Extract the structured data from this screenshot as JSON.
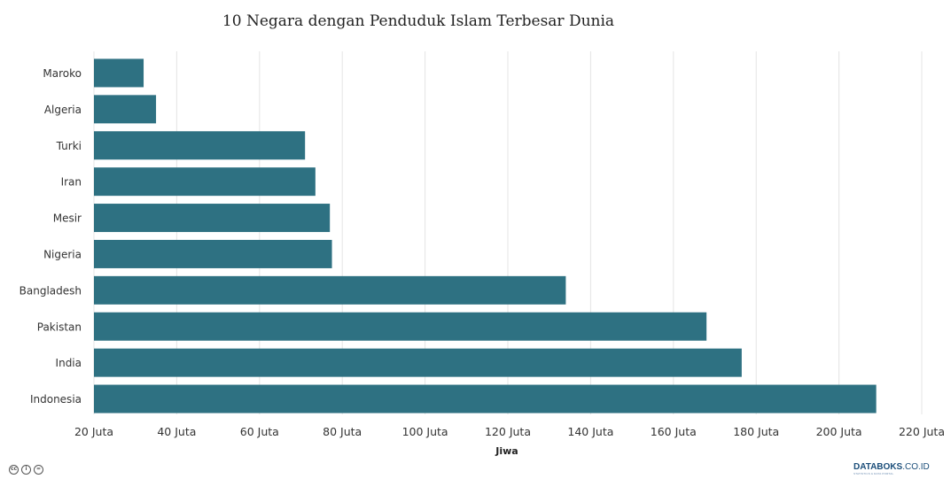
{
  "chart_data": {
    "type": "bar",
    "orientation": "horizontal",
    "title": "10 Negara dengan Penduduk Islam Terbesar Dunia",
    "xlabel": "Jiwa",
    "ylabel": "",
    "categories": [
      "Maroko",
      "Algeria",
      "Turki",
      "Iran",
      "Mesir",
      "Nigeria",
      "Bangladesh",
      "Pakistan",
      "India",
      "Indonesia"
    ],
    "values": [
      32,
      35,
      71,
      73.5,
      77,
      77.5,
      134,
      168,
      176.5,
      209
    ],
    "xlim": [
      20,
      220
    ],
    "xticks": [
      20,
      40,
      60,
      80,
      100,
      120,
      140,
      160,
      180,
      200,
      220
    ],
    "xtick_labels": [
      "20 Juta",
      "40 Juta",
      "60 Juta",
      "80 Juta",
      "100 Juta",
      "120 Juta",
      "140 Juta",
      "160 Juta",
      "180 Juta",
      "200 Juta",
      "220 Juta"
    ],
    "bar_color": "#2e7182",
    "grid_color": "#e4e4e4",
    "grid": true
  },
  "footer": {
    "license_icons": [
      "cc-icon",
      "by-icon",
      "nd-icon"
    ],
    "license_glyphs": [
      "cc",
      "i",
      "="
    ],
    "logo_brand": "DATABOKS",
    "logo_suffix": ".CO.ID",
    "logo_tagline": "STATISTICS & DATA PORTAL"
  }
}
